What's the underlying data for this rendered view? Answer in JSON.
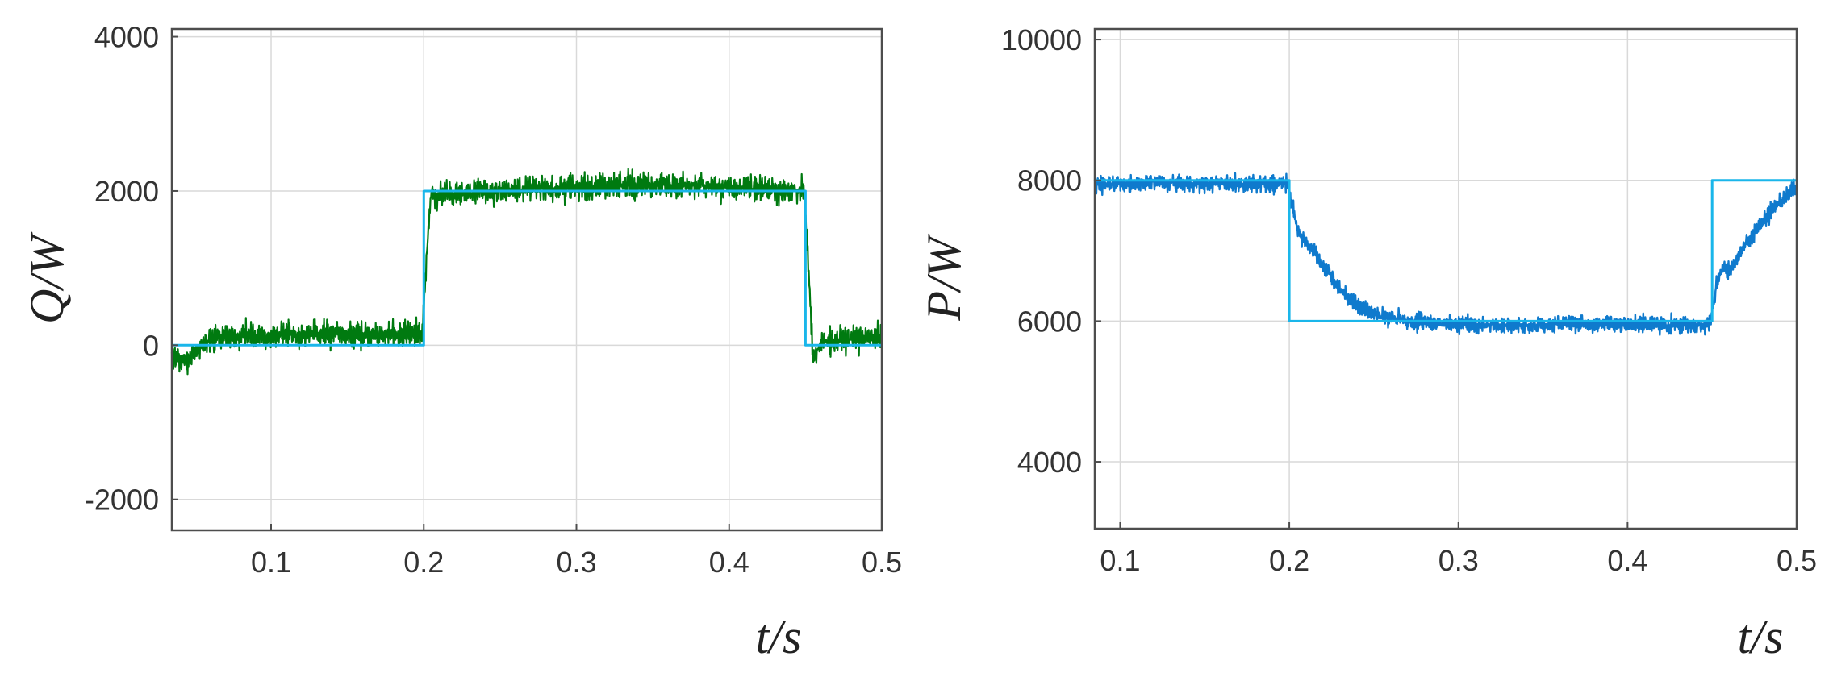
{
  "chart_data": [
    {
      "type": "line",
      "title": "",
      "xlabel": "t/s",
      "ylabel": "Q/W",
      "xlim": [
        0.035,
        0.5
      ],
      "ylim": [
        -2400,
        4100
      ],
      "xticks": [
        0.1,
        0.2,
        0.3,
        0.4,
        0.5
      ],
      "xtick_labels": [
        "0.1",
        "0.2",
        "0.3",
        "0.4",
        "0.5"
      ],
      "yticks": [
        -2000,
        0,
        2000,
        4000
      ],
      "ytick_labels": [
        "-2000",
        "0",
        "2000",
        "4000"
      ],
      "grid": true,
      "series": [
        {
          "color": "#007a10",
          "noisy": true,
          "x": [
            0.035,
            0.045,
            0.06,
            0.08,
            0.1,
            0.15,
            0.199,
            0.202,
            0.205,
            0.21,
            0.25,
            0.3,
            0.35,
            0.4,
            0.449,
            0.452,
            0.455,
            0.46,
            0.5
          ],
          "y": [
            -150,
            -200,
            80,
            120,
            130,
            140,
            150,
            1200,
            2000,
            1950,
            2000,
            2050,
            2080,
            2050,
            2000,
            1000,
            -200,
            50,
            100
          ]
        },
        {
          "color": "#1ab6ea",
          "noisy": false,
          "x": [
            0.035,
            0.2,
            0.2,
            0.45,
            0.45,
            0.5
          ],
          "y": [
            0,
            0,
            2000,
            2000,
            0,
            0
          ]
        }
      ]
    },
    {
      "type": "line",
      "title": "",
      "xlabel": "t/s",
      "ylabel": "P/W",
      "xlim": [
        0.085,
        0.5
      ],
      "ylim": [
        3050,
        10150
      ],
      "xticks": [
        0.1,
        0.2,
        0.3,
        0.4,
        0.5
      ],
      "xtick_labels": [
        "0.1",
        "0.2",
        "0.3",
        "0.4",
        "0.5"
      ],
      "yticks": [
        4000,
        6000,
        8000,
        10000
      ],
      "ytick_labels": [
        "4000",
        "6000",
        "8000",
        "10000"
      ],
      "grid": true,
      "series": [
        {
          "color": "#0f7acd",
          "noisy": true,
          "x": [
            0.085,
            0.12,
            0.16,
            0.199,
            0.2,
            0.205,
            0.21,
            0.215,
            0.22,
            0.23,
            0.24,
            0.25,
            0.27,
            0.3,
            0.35,
            0.4,
            0.448,
            0.45,
            0.453,
            0.457,
            0.46,
            0.465,
            0.47,
            0.48,
            0.49,
            0.5
          ],
          "y": [
            7950,
            7960,
            7950,
            7950,
            7800,
            7300,
            7100,
            7000,
            6800,
            6450,
            6200,
            6100,
            6000,
            5950,
            5950,
            5950,
            5950,
            6100,
            6600,
            6800,
            6700,
            6900,
            7100,
            7400,
            7700,
            7900
          ]
        },
        {
          "color": "#1ab6ea",
          "noisy": false,
          "x": [
            0.085,
            0.2,
            0.2,
            0.45,
            0.45,
            0.5
          ],
          "y": [
            8000,
            8000,
            6000,
            6000,
            8000,
            8000
          ]
        }
      ]
    }
  ]
}
